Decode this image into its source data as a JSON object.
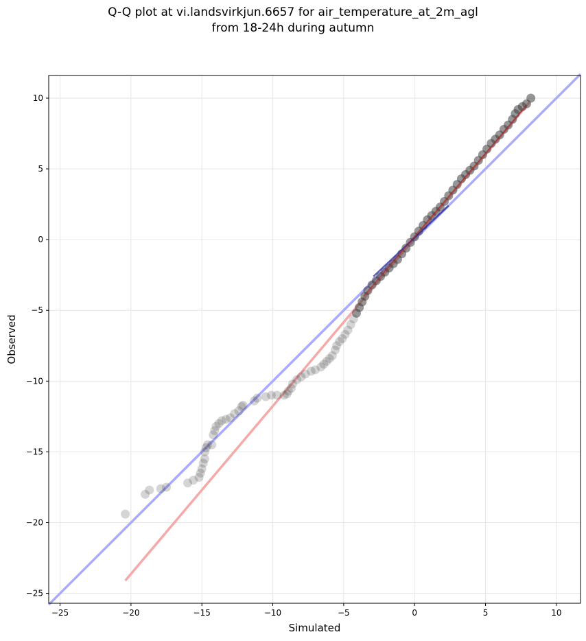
{
  "chart_data": {
    "type": "scatter",
    "title": "Q-Q plot at vi.landsvirkjun.6657 for air_temperature_at_2m_agl",
    "subtitle": "from 18-24h during autumn",
    "xlabel": "Simulated",
    "ylabel": "Observed",
    "xlim": [
      -25.8,
      11.7
    ],
    "ylim": [
      -25.7,
      11.6
    ],
    "xticks": [
      -25,
      -20,
      -15,
      -10,
      -5,
      0,
      5,
      10
    ],
    "xtick_labels": [
      "−25",
      "−20",
      "−15",
      "−10",
      "−5",
      "0",
      "5",
      "10"
    ],
    "yticks": [
      -25,
      -20,
      -15,
      -10,
      -5,
      0,
      5,
      10
    ],
    "ytick_labels": [
      "−25",
      "−20",
      "−15",
      "−10",
      "−5",
      "0",
      "5",
      "10"
    ],
    "grid": true,
    "points": [
      [
        -20.4,
        -19.4
      ],
      [
        -19.0,
        -18.0
      ],
      [
        -18.7,
        -17.7
      ],
      [
        -17.9,
        -17.6
      ],
      [
        -17.5,
        -17.5
      ],
      [
        -16.0,
        -17.2
      ],
      [
        -15.6,
        -17.0
      ],
      [
        -15.2,
        -16.8
      ],
      [
        -15.1,
        -16.5
      ],
      [
        -15.0,
        -16.2
      ],
      [
        -14.9,
        -15.8
      ],
      [
        -14.8,
        -15.5
      ],
      [
        -14.8,
        -15.0
      ],
      [
        -14.7,
        -14.7
      ],
      [
        -14.6,
        -14.5
      ],
      [
        -14.3,
        -14.5
      ],
      [
        -14.2,
        -13.8
      ],
      [
        -14.1,
        -13.5
      ],
      [
        -14.0,
        -13.2
      ],
      [
        -13.8,
        -13.0
      ],
      [
        -13.6,
        -12.8
      ],
      [
        -13.3,
        -12.7
      ],
      [
        -13.0,
        -12.6
      ],
      [
        -12.7,
        -12.3
      ],
      [
        -12.4,
        -12.1
      ],
      [
        -12.2,
        -11.8
      ],
      [
        -12.1,
        -11.7
      ],
      [
        -11.3,
        -11.4
      ],
      [
        -11.1,
        -11.2
      ],
      [
        -10.5,
        -11.1
      ],
      [
        -10.1,
        -11.0
      ],
      [
        -9.7,
        -11.0
      ],
      [
        -9.2,
        -11.0
      ],
      [
        -9.0,
        -10.9
      ],
      [
        -8.9,
        -10.7
      ],
      [
        -8.7,
        -10.5
      ],
      [
        -8.6,
        -10.2
      ],
      [
        -8.3,
        -9.9
      ],
      [
        -8.0,
        -9.7
      ],
      [
        -7.7,
        -9.5
      ],
      [
        -7.3,
        -9.3
      ],
      [
        -7.0,
        -9.2
      ],
      [
        -6.6,
        -9.0
      ],
      [
        -6.4,
        -8.8
      ],
      [
        -6.2,
        -8.6
      ],
      [
        -6.0,
        -8.4
      ],
      [
        -5.8,
        -8.2
      ],
      [
        -5.6,
        -7.8
      ],
      [
        -5.5,
        -7.5
      ],
      [
        -5.3,
        -7.2
      ],
      [
        -5.1,
        -7.0
      ],
      [
        -4.9,
        -6.7
      ],
      [
        -4.7,
        -6.4
      ],
      [
        -4.5,
        -6.0
      ],
      [
        -4.3,
        -5.6
      ],
      [
        -4.1,
        -5.2
      ],
      [
        -3.9,
        -4.8
      ],
      [
        -3.7,
        -4.4
      ],
      [
        -3.5,
        -4.0
      ],
      [
        -3.3,
        -3.6
      ],
      [
        -3.0,
        -3.2
      ],
      [
        -2.7,
        -2.9
      ],
      [
        -2.4,
        -2.6
      ],
      [
        -2.1,
        -2.3
      ],
      [
        -1.8,
        -2.0
      ],
      [
        -1.5,
        -1.7
      ],
      [
        -1.2,
        -1.4
      ],
      [
        -0.9,
        -1.0
      ],
      [
        -0.6,
        -0.6
      ],
      [
        -0.3,
        -0.2
      ],
      [
        0.0,
        0.2
      ],
      [
        0.3,
        0.6
      ],
      [
        0.6,
        1.0
      ],
      [
        0.9,
        1.4
      ],
      [
        1.2,
        1.7
      ],
      [
        1.5,
        2.0
      ],
      [
        1.8,
        2.3
      ],
      [
        2.1,
        2.7
      ],
      [
        2.4,
        3.1
      ],
      [
        2.7,
        3.5
      ],
      [
        3.0,
        3.9
      ],
      [
        3.3,
        4.3
      ],
      [
        3.6,
        4.6
      ],
      [
        3.9,
        4.9
      ],
      [
        4.2,
        5.2
      ],
      [
        4.5,
        5.6
      ],
      [
        4.8,
        6.0
      ],
      [
        5.1,
        6.4
      ],
      [
        5.4,
        6.8
      ],
      [
        5.7,
        7.1
      ],
      [
        6.0,
        7.4
      ],
      [
        6.3,
        7.8
      ],
      [
        6.6,
        8.1
      ],
      [
        6.9,
        8.5
      ],
      [
        7.1,
        8.9
      ],
      [
        7.3,
        9.2
      ],
      [
        7.6,
        9.4
      ],
      [
        7.9,
        9.6
      ],
      [
        8.2,
        10.0
      ]
    ],
    "reference_lines": [
      {
        "color": "#aaaaff",
        "from": [
          -25.8,
          -25.8
        ],
        "to": [
          11.7,
          11.7
        ]
      },
      {
        "color": "#f5a9a9",
        "from": [
          -20.4,
          -24.1
        ],
        "to": [
          8.1,
          9.7
        ]
      }
    ],
    "colors": {
      "point": "#404040",
      "identity_line": "#aaaaff",
      "fit_line": "#f5a9a9",
      "dense_line_blue": "#1f1f9f",
      "dense_line_red": "#b22222"
    }
  }
}
